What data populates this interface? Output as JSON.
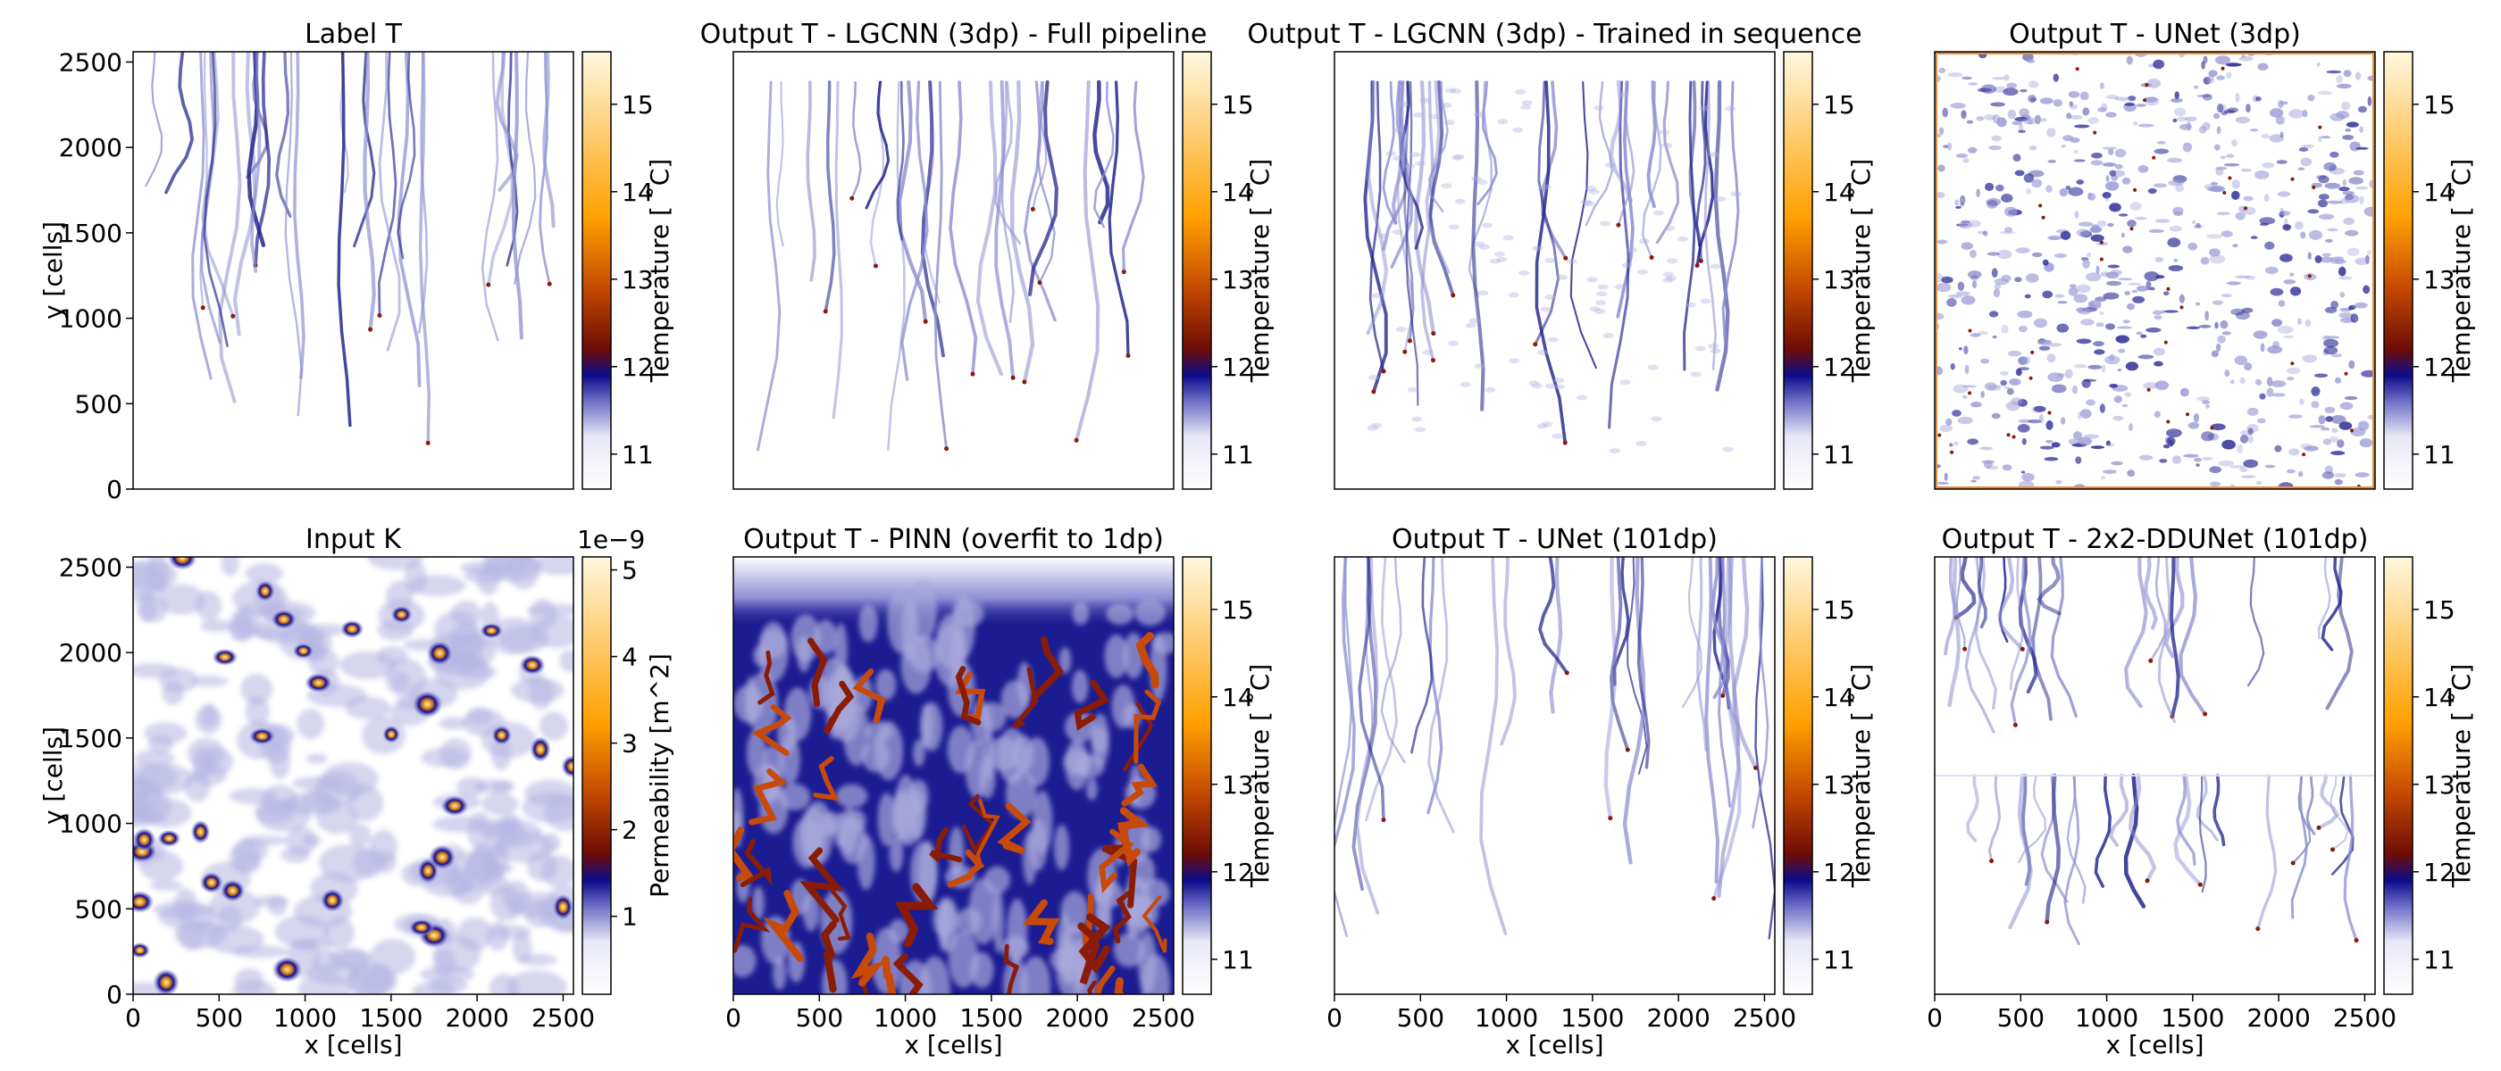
{
  "chart_data": [
    {
      "type": "heatmap",
      "title": "Label T",
      "pattern": "plumes",
      "ylabel": "y [cells]",
      "xlabel": "",
      "x_ticks": [],
      "y_ticks": [
        "0",
        "500",
        "1000",
        "1500",
        "2000",
        "2500"
      ],
      "colorbar": {
        "label": "Temperature [$^\\circ$C]",
        "label_text": "Temperature [ ˚C]",
        "ticks": [
          "11",
          "12",
          "13",
          "14",
          "15"
        ],
        "tick_values": [
          11,
          12,
          13,
          14,
          15
        ],
        "range": [
          10.6,
          15.6
        ],
        "offset": ""
      }
    },
    {
      "type": "heatmap",
      "title": "Output T - LGCNN (3dp) - Full pipeline",
      "pattern": "plumes_cropped",
      "ylabel": "",
      "xlabel": "",
      "x_ticks": [],
      "y_ticks": [],
      "colorbar": {
        "label_text": "Temperature [ ˚C]",
        "ticks": [
          "11",
          "12",
          "13",
          "14",
          "15"
        ],
        "tick_values": [
          11,
          12,
          13,
          14,
          15
        ],
        "range": [
          10.6,
          15.6
        ],
        "offset": ""
      }
    },
    {
      "type": "heatmap",
      "title": "Output T - LGCNN (3dp) - Trained in sequence",
      "pattern": "plumes_cropped_noisy",
      "ylabel": "",
      "xlabel": "",
      "x_ticks": [],
      "y_ticks": [],
      "colorbar": {
        "label_text": "Temperature [ ˚C]",
        "ticks": [
          "11",
          "12",
          "13",
          "14",
          "15"
        ],
        "tick_values": [
          11,
          12,
          13,
          14,
          15
        ],
        "range": [
          10.6,
          15.6
        ],
        "offset": ""
      }
    },
    {
      "type": "heatmap",
      "title": "Output T - UNet (3dp)",
      "pattern": "noise",
      "ylabel": "",
      "xlabel": "",
      "x_ticks": [],
      "y_ticks": [],
      "colorbar": {
        "label_text": "Temperature [ ˚C]",
        "ticks": [
          "11",
          "12",
          "13",
          "14",
          "15"
        ],
        "tick_values": [
          11,
          12,
          13,
          14,
          15
        ],
        "range": [
          10.6,
          15.6
        ],
        "offset": ""
      }
    },
    {
      "type": "heatmap",
      "title": "Input K",
      "pattern": "blobs",
      "ylabel": "y [cells]",
      "xlabel": "x [cells]",
      "x_ticks": [
        "0",
        "500",
        "1000",
        "1500",
        "2000",
        "2500"
      ],
      "y_ticks": [
        "0",
        "500",
        "1000",
        "1500",
        "2000",
        "2500"
      ],
      "colorbar": {
        "label_text": "Permeability [m^2]",
        "ticks": [
          "1",
          "2",
          "3",
          "4",
          "5"
        ],
        "tick_values": [
          1,
          2,
          3,
          4,
          5
        ],
        "range": [
          0.1,
          5.15
        ],
        "offset": "1e−9"
      }
    },
    {
      "type": "heatmap",
      "title": "Output T - PINN (overfit to 1dp)",
      "pattern": "pinn",
      "ylabel": "",
      "xlabel": "x [cells]",
      "x_ticks": [
        "0",
        "500",
        "1000",
        "1500",
        "2000",
        "2500"
      ],
      "y_ticks": [],
      "colorbar": {
        "label_text": "Temperature [ ˚C]",
        "ticks": [
          "11",
          "12",
          "13",
          "14",
          "15"
        ],
        "tick_values": [
          11,
          12,
          13,
          14,
          15
        ],
        "range": [
          10.6,
          15.6
        ],
        "offset": ""
      }
    },
    {
      "type": "heatmap",
      "title": "Output T - UNet (101dp)",
      "pattern": "plumes",
      "ylabel": "",
      "xlabel": "x [cells]",
      "x_ticks": [
        "0",
        "500",
        "1000",
        "1500",
        "2000",
        "2500"
      ],
      "y_ticks": [],
      "colorbar": {
        "label_text": "Temperature [ ˚C]",
        "ticks": [
          "11",
          "12",
          "13",
          "14",
          "15"
        ],
        "tick_values": [
          11,
          12,
          13,
          14,
          15
        ],
        "range": [
          10.6,
          15.6
        ],
        "offset": ""
      }
    },
    {
      "type": "heatmap",
      "title": "Output T - 2x2-DDUNet (101dp)",
      "pattern": "plumes_split",
      "ylabel": "",
      "xlabel": "x [cells]",
      "x_ticks": [
        "0",
        "500",
        "1000",
        "1500",
        "2000",
        "2500"
      ],
      "y_ticks": [],
      "colorbar": {
        "label_text": "Temperature [ ˚C]",
        "ticks": [
          "11",
          "12",
          "13",
          "14",
          "15"
        ],
        "tick_values": [
          11,
          12,
          13,
          14,
          15
        ],
        "range": [
          10.6,
          15.6
        ],
        "offset": ""
      }
    }
  ],
  "colors": {
    "cmap": [
      "#ffffff",
      "#e8e8f6",
      "#7070c8",
      "#0c0c8c",
      "#6e0c06",
      "#c44a00",
      "#ffa000",
      "#fff8e0"
    ],
    "axis": "#000000"
  }
}
